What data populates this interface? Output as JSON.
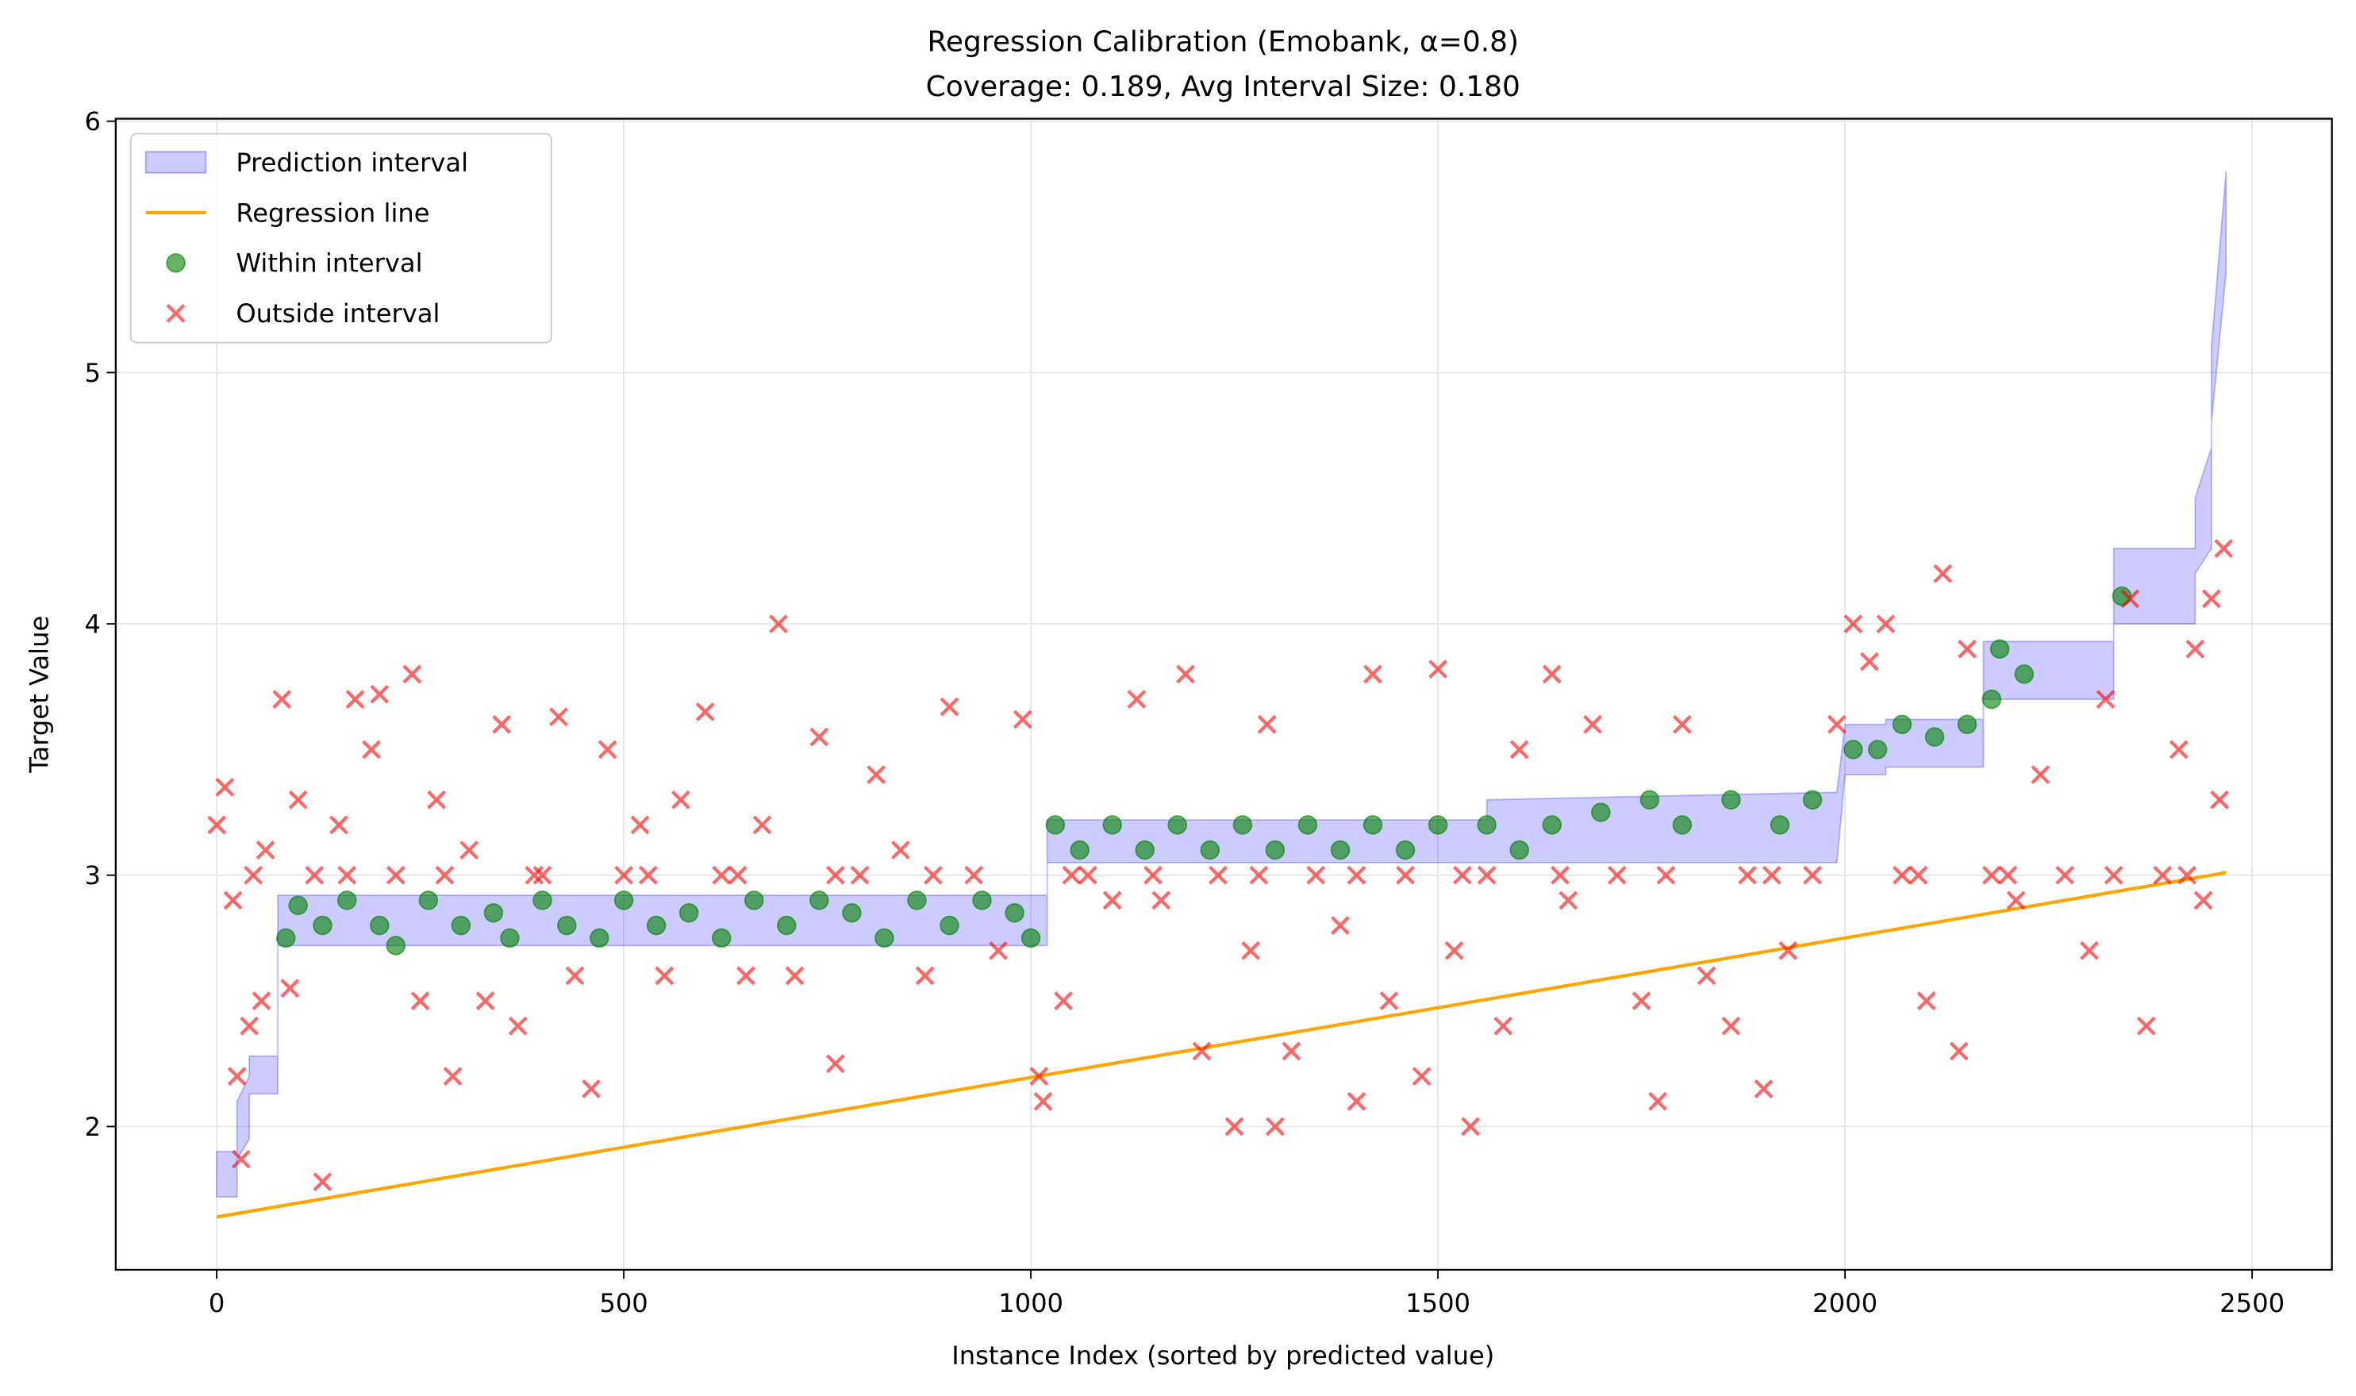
{
  "chart_data": {
    "type": "scatter",
    "title": "Regression Calibration (Emobank, α=0.8)",
    "subtitle": "Coverage: 0.189, Avg Interval Size: 0.180",
    "xlabel": "Instance Index (sorted by predicted value)",
    "ylabel": "Target Value",
    "xlim": [
      -124,
      2598
    ],
    "ylim": [
      1.43,
      6.01
    ],
    "xticks": [
      0,
      500,
      1000,
      1500,
      2000,
      2500
    ],
    "yticks": [
      2,
      3,
      4,
      5,
      6
    ],
    "grid": true,
    "legend": "upper left",
    "interval": {
      "name": "Prediction interval",
      "color": "#0000ff",
      "x": [
        0,
        25,
        25,
        40,
        40,
        75,
        75,
        1020,
        1020,
        1560,
        1560,
        1990,
        2000,
        2050,
        2050,
        2170,
        2170,
        2330,
        2330,
        2430,
        2430,
        2450,
        2450,
        2468
      ],
      "lower": [
        1.72,
        1.72,
        1.87,
        1.95,
        2.13,
        2.13,
        2.72,
        2.72,
        3.05,
        3.05,
        3.05,
        3.05,
        3.4,
        3.4,
        3.43,
        3.43,
        3.7,
        3.7,
        4.0,
        4.0,
        4.2,
        4.3,
        4.8,
        5.4
      ],
      "upper": [
        1.9,
        1.9,
        2.1,
        2.2,
        2.28,
        2.28,
        2.92,
        2.92,
        3.22,
        3.22,
        3.3,
        3.33,
        3.6,
        3.6,
        3.62,
        3.62,
        3.93,
        3.93,
        4.3,
        4.3,
        4.5,
        4.7,
        5.1,
        5.8
      ]
    },
    "line": {
      "name": "Regression line",
      "color": "#ffa500",
      "x": [
        0,
        2468
      ],
      "y": [
        1.64,
        3.01
      ]
    },
    "series": [
      {
        "name": "Within interval",
        "color": "#008000",
        "marker": "o",
        "x": [
          85,
          100,
          130,
          160,
          200,
          220,
          260,
          300,
          340,
          360,
          400,
          430,
          470,
          500,
          540,
          580,
          620,
          660,
          700,
          740,
          780,
          820,
          860,
          900,
          940,
          980,
          1000,
          1030,
          1060,
          1100,
          1140,
          1180,
          1220,
          1260,
          1300,
          1340,
          1380,
          1420,
          1460,
          1500,
          1560,
          1600,
          1640,
          1700,
          1760,
          1800,
          1860,
          1920,
          1960,
          2010,
          2040,
          2070,
          2110,
          2150,
          2180,
          2190,
          2220,
          2340
        ],
        "values": [
          2.75,
          2.88,
          2.8,
          2.9,
          2.8,
          2.72,
          2.9,
          2.8,
          2.85,
          2.75,
          2.9,
          2.8,
          2.75,
          2.9,
          2.8,
          2.85,
          2.75,
          2.9,
          2.8,
          2.9,
          2.85,
          2.75,
          2.9,
          2.8,
          2.9,
          2.85,
          2.75,
          3.2,
          3.1,
          3.2,
          3.1,
          3.2,
          3.1,
          3.2,
          3.1,
          3.2,
          3.1,
          3.2,
          3.1,
          3.2,
          3.2,
          3.1,
          3.2,
          3.25,
          3.3,
          3.2,
          3.3,
          3.2,
          3.3,
          3.5,
          3.5,
          3.6,
          3.55,
          3.6,
          3.7,
          3.9,
          3.8,
          4.11
        ]
      },
      {
        "name": "Outside interval",
        "color": "#ff0000",
        "marker": "x",
        "x": [
          0,
          10,
          20,
          25,
          30,
          40,
          55,
          60,
          80,
          90,
          100,
          120,
          130,
          150,
          170,
          190,
          200,
          220,
          240,
          250,
          270,
          290,
          310,
          330,
          350,
          370,
          390,
          420,
          440,
          460,
          480,
          500,
          520,
          550,
          570,
          600,
          620,
          650,
          670,
          690,
          710,
          740,
          760,
          790,
          810,
          840,
          870,
          900,
          930,
          960,
          990,
          1010,
          1015,
          1040,
          1070,
          1100,
          1130,
          1160,
          1190,
          1210,
          1230,
          1250,
          1270,
          1290,
          1300,
          1320,
          1350,
          1380,
          1400,
          1420,
          1440,
          1460,
          1480,
          1500,
          1520,
          1540,
          1560,
          1580,
          1600,
          1640,
          1660,
          1690,
          1720,
          1750,
          1770,
          1800,
          1830,
          1860,
          1880,
          1900,
          1930,
          1960,
          1990,
          2010,
          2030,
          2050,
          2070,
          2100,
          2120,
          2140,
          2150,
          2180,
          2210,
          2240,
          2270,
          2300,
          2320,
          2350,
          2370,
          2390,
          2410,
          2430,
          2440,
          2450,
          2460,
          2465,
          45,
          160,
          280,
          400,
          530,
          640,
          760,
          880,
          1050,
          1150,
          1280,
          1400,
          1530,
          1650,
          1780,
          1910,
          2090,
          2200,
          2330,
          2420
        ],
        "values": [
          3.2,
          3.35,
          2.9,
          2.2,
          1.87,
          2.4,
          2.5,
          3.1,
          3.7,
          2.55,
          3.3,
          3.0,
          1.78,
          3.2,
          3.7,
          3.5,
          3.72,
          3.0,
          3.8,
          2.5,
          3.3,
          2.2,
          3.1,
          2.5,
          3.6,
          2.4,
          3.0,
          3.63,
          2.6,
          2.15,
          3.5,
          3.0,
          3.2,
          2.6,
          3.3,
          3.65,
          3.0,
          2.6,
          3.2,
          4.0,
          2.6,
          3.55,
          2.25,
          3.0,
          3.4,
          3.1,
          2.6,
          3.67,
          3.0,
          2.7,
          3.62,
          2.2,
          2.1,
          2.5,
          3.0,
          2.9,
          3.7,
          2.9,
          3.8,
          2.3,
          3.0,
          2.0,
          2.7,
          3.6,
          2.0,
          2.3,
          3.0,
          2.8,
          2.1,
          3.8,
          2.5,
          3.0,
          2.2,
          3.82,
          2.7,
          2.0,
          3.0,
          2.4,
          3.5,
          3.8,
          2.9,
          3.6,
          3.0,
          2.5,
          2.1,
          3.6,
          2.6,
          2.4,
          3.0,
          2.15,
          2.7,
          3.0,
          3.6,
          4.0,
          3.85,
          4.0,
          3.0,
          2.5,
          4.2,
          2.3,
          3.9,
          3.0,
          2.9,
          3.4,
          3.0,
          2.7,
          3.7,
          4.1,
          2.4,
          3.0,
          3.5,
          3.9,
          2.9,
          4.1,
          3.3,
          4.3,
          3.0,
          3.0,
          3.0,
          3.0,
          3.0,
          3.0,
          3.0,
          3.0,
          3.0,
          3.0,
          3.0,
          3.0,
          3.0,
          3.0,
          3.0,
          3.0,
          3.0,
          3.0,
          3.0,
          3.0
        ]
      }
    ]
  }
}
